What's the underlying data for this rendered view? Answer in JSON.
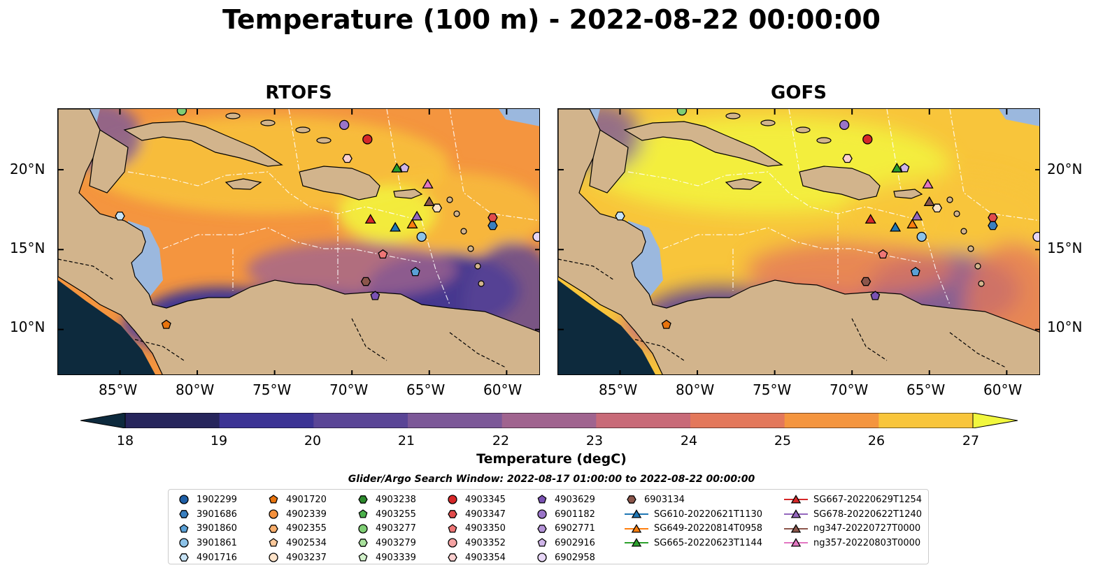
{
  "title": "Temperature (100 m) - 2022-08-22 00:00:00",
  "panels": [
    {
      "name": "RTOFS",
      "style": "rtofs"
    },
    {
      "name": "GOFS",
      "style": "gofs"
    }
  ],
  "lon_ticks": [
    "85°W",
    "80°W",
    "75°W",
    "70°W",
    "65°W",
    "60°W"
  ],
  "lat_ticks": [
    "20°N",
    "15°N",
    "10°N"
  ],
  "colorbar": {
    "ticks": [
      "18",
      "19",
      "20",
      "21",
      "22",
      "23",
      "24",
      "25",
      "26",
      "27"
    ],
    "label": "Temperature (degC)",
    "colors": [
      "#0d2a3d",
      "#26255c",
      "#3b3394",
      "#5a4596",
      "#7c5898",
      "#a0648f",
      "#c86a78",
      "#e3785b",
      "#f4953f",
      "#f8c53b",
      "#f1f73e"
    ]
  },
  "search_window": "Glider/Argo Search Window: 2022-08-17 01:00:00 to 2022-08-22 00:00:00",
  "legend_columns": [
    [
      {
        "label": "1902299",
        "marker": "circle",
        "color": "#1f5fa6"
      },
      {
        "label": "3901686",
        "marker": "hexagon",
        "color": "#3a7fbf"
      },
      {
        "label": "3901860",
        "marker": "pentagon",
        "color": "#5aa0d6"
      },
      {
        "label": "3901861",
        "marker": "circle",
        "color": "#8cc2e8"
      },
      {
        "label": "4901716",
        "marker": "hexagon",
        "color": "#c7e3f6"
      }
    ],
    [
      {
        "label": "4901720",
        "marker": "pentagon",
        "color": "#e8740e"
      },
      {
        "label": "4902339",
        "marker": "circle",
        "color": "#f5913d"
      },
      {
        "label": "4902355",
        "marker": "hexagon",
        "color": "#f8ae6c"
      },
      {
        "label": "4902534",
        "marker": "pentagon",
        "color": "#fbc89a"
      },
      {
        "label": "4903237",
        "marker": "circle",
        "color": "#fde3c9"
      }
    ],
    [
      {
        "label": "4903238",
        "marker": "hexagon",
        "color": "#2d8a2d"
      },
      {
        "label": "4903255",
        "marker": "pentagon",
        "color": "#4bb04b"
      },
      {
        "label": "4903277",
        "marker": "circle",
        "color": "#7fce74"
      },
      {
        "label": "4903279",
        "marker": "hexagon",
        "color": "#a8e09c"
      },
      {
        "label": "4903339",
        "marker": "pentagon",
        "color": "#d3f2cb"
      }
    ],
    [
      {
        "label": "4903345",
        "marker": "circle",
        "color": "#d62728"
      },
      {
        "label": "4903347",
        "marker": "hexagon",
        "color": "#e24b4b"
      },
      {
        "label": "4903350",
        "marker": "pentagon",
        "color": "#ee7676"
      },
      {
        "label": "4903352",
        "marker": "circle",
        "color": "#f5a3a3"
      },
      {
        "label": "4903354",
        "marker": "hexagon",
        "color": "#fbd0d0"
      }
    ],
    [
      {
        "label": "4903629",
        "marker": "pentagon",
        "color": "#7a52b3"
      },
      {
        "label": "6901182",
        "marker": "circle",
        "color": "#9a74c8"
      },
      {
        "label": "6902771",
        "marker": "hexagon",
        "color": "#b594d8"
      },
      {
        "label": "6902916",
        "marker": "pentagon",
        "color": "#cfb5e8"
      },
      {
        "label": "6902958",
        "marker": "circle",
        "color": "#e7d6f6"
      }
    ],
    [
      {
        "label": "6903134",
        "marker": "hexagon",
        "color": "#8c564b"
      },
      {
        "label": "SG610-20220621T1130",
        "marker": "triangle",
        "color": "#1f77b4"
      },
      {
        "label": "SG649-20220814T0958",
        "marker": "triangle",
        "color": "#ff7f0e"
      },
      {
        "label": "SG665-20220623T1144",
        "marker": "triangle",
        "color": "#2ca02c"
      }
    ],
    [
      {
        "label": "SG667-20220629T1254",
        "marker": "triangle",
        "color": "#d62728"
      },
      {
        "label": "SG678-20220622T1240",
        "marker": "triangle",
        "color": "#9467bd"
      },
      {
        "label": "ng347-20220727T0000",
        "marker": "triangle",
        "color": "#8c564b"
      },
      {
        "label": "ng357-20220803T0000",
        "marker": "triangle",
        "color": "#e377c2"
      }
    ]
  ],
  "markers": [
    {
      "lon": -81.0,
      "lat": 23.7,
      "marker": "circle",
      "color": "#7fce74"
    },
    {
      "lon": -70.5,
      "lat": 22.8,
      "marker": "circle",
      "color": "#9a74c8"
    },
    {
      "lon": -69.0,
      "lat": 21.9,
      "marker": "circle",
      "color": "#d62728"
    },
    {
      "lon": -70.3,
      "lat": 20.7,
      "marker": "hexagon",
      "color": "#fbd0d0"
    },
    {
      "lon": -67.1,
      "lat": 20.1,
      "marker": "triangle",
      "color": "#2ca02c"
    },
    {
      "lon": -66.6,
      "lat": 20.1,
      "marker": "pentagon",
      "color": "#cfb5e8"
    },
    {
      "lon": -65.1,
      "lat": 19.1,
      "marker": "triangle",
      "color": "#e377c2"
    },
    {
      "lon": -64.5,
      "lat": 17.6,
      "marker": "hexagon",
      "color": "#fde3c9"
    },
    {
      "lon": -65.0,
      "lat": 18.0,
      "marker": "triangle",
      "color": "#8c564b"
    },
    {
      "lon": -65.8,
      "lat": 17.1,
      "marker": "triangle",
      "color": "#9467bd"
    },
    {
      "lon": -66.1,
      "lat": 16.6,
      "marker": "triangle",
      "color": "#ff7f0e"
    },
    {
      "lon": -67.2,
      "lat": 16.4,
      "marker": "triangle",
      "color": "#1f77b4"
    },
    {
      "lon": -68.8,
      "lat": 16.9,
      "marker": "triangle",
      "color": "#d62728"
    },
    {
      "lon": -65.5,
      "lat": 15.8,
      "marker": "circle",
      "color": "#8cc2e8"
    },
    {
      "lon": -68.0,
      "lat": 14.7,
      "marker": "pentagon",
      "color": "#ee7676"
    },
    {
      "lon": -65.9,
      "lat": 13.6,
      "marker": "pentagon",
      "color": "#5aa0d6"
    },
    {
      "lon": -69.1,
      "lat": 13.0,
      "marker": "hexagon",
      "color": "#8c564b"
    },
    {
      "lon": -68.5,
      "lat": 12.1,
      "marker": "pentagon",
      "color": "#7a52b3"
    },
    {
      "lon": -60.9,
      "lat": 17.0,
      "marker": "hexagon",
      "color": "#e24b4b"
    },
    {
      "lon": -60.9,
      "lat": 16.5,
      "marker": "hexagon",
      "color": "#3a7fbf"
    },
    {
      "lon": -58.0,
      "lat": 15.8,
      "marker": "circle",
      "color": "#e7d6f6"
    },
    {
      "lon": -85.0,
      "lat": 17.1,
      "marker": "hexagon",
      "color": "#c7e3f6"
    },
    {
      "lon": -82.0,
      "lat": 10.3,
      "marker": "pentagon",
      "color": "#e8740e"
    }
  ]
}
